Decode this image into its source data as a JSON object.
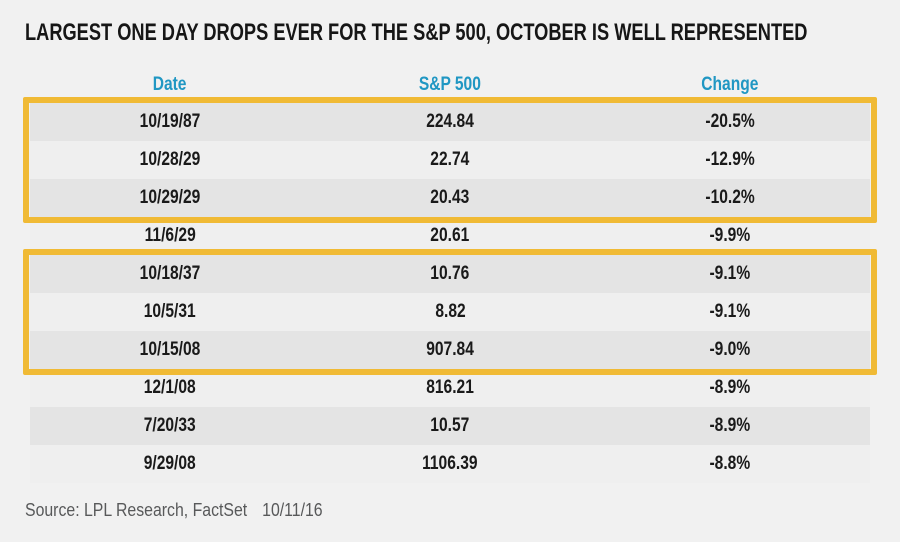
{
  "title": "LARGEST ONE DAY DROPS EVER FOR THE S&P 500, OCTOBER IS WELL REPRESENTED",
  "table": {
    "columns": [
      "Date",
      "S&P 500",
      "Change"
    ],
    "rows": [
      {
        "date": "10/19/87",
        "sp500": "224.84",
        "change": "-20.5%"
      },
      {
        "date": "10/28/29",
        "sp500": "22.74",
        "change": "-12.9%"
      },
      {
        "date": "10/29/29",
        "sp500": "20.43",
        "change": "-10.2%"
      },
      {
        "date": "11/6/29",
        "sp500": "20.61",
        "change": "-9.9%"
      },
      {
        "date": "10/18/37",
        "sp500": "10.76",
        "change": "-9.1%"
      },
      {
        "date": "10/5/31",
        "sp500": "8.82",
        "change": "-9.1%"
      },
      {
        "date": "10/15/08",
        "sp500": "907.84",
        "change": "-9.0%"
      },
      {
        "date": "12/1/08",
        "sp500": "816.21",
        "change": "-8.9%"
      },
      {
        "date": "7/20/33",
        "sp500": "10.57",
        "change": "-8.9%"
      },
      {
        "date": "9/29/08",
        "sp500": "1106.39",
        "change": "-8.8%"
      }
    ]
  },
  "source": {
    "label": "Source: LPL Research, FactSet",
    "date": "10/11/16"
  },
  "colors": {
    "accent_blue": "#2097c3",
    "highlight_gold": "#f0ba35",
    "row_dark": "#e4e4e4",
    "row_light": "#efefef",
    "background": "#f1f1f1",
    "title_color": "#161616",
    "text_color": "#1a1a1a",
    "source_gray": "#58595a"
  },
  "chart_data": {
    "type": "table",
    "title": "LARGEST ONE DAY DROPS EVER FOR THE S&P 500, OCTOBER IS WELL REPRESENTED",
    "columns": [
      "Date",
      "S&P 500",
      "Change"
    ],
    "rows": [
      [
        "10/19/87",
        224.84,
        -20.5
      ],
      [
        "10/28/29",
        22.74,
        -12.9
      ],
      [
        "10/29/29",
        20.43,
        -10.2
      ],
      [
        "11/6/29",
        20.61,
        -9.9
      ],
      [
        "10/18/37",
        10.76,
        -9.1
      ],
      [
        "10/5/31",
        8.82,
        -9.1
      ],
      [
        "10/15/08",
        907.84,
        -9.0
      ],
      [
        "12/1/08",
        816.21,
        -8.9
      ],
      [
        "7/20/33",
        10.57,
        -8.9
      ],
      [
        "9/29/08",
        1106.39,
        -8.8
      ]
    ],
    "change_unit": "%",
    "highlighted_row_groups": [
      [
        0,
        1,
        2
      ],
      [
        4,
        5,
        6
      ]
    ],
    "highlight_style": "gold outline box",
    "row_striping": "alternating gray, odd rows darker",
    "source": "Source: LPL Research, FactSet 10/11/16"
  }
}
